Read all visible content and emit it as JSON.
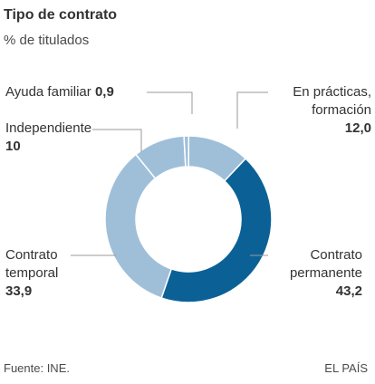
{
  "chart_data": {
    "type": "pie",
    "title": "Tipo de contrato",
    "subtitle": "% de titulados",
    "unit": "%",
    "donut": true,
    "slices": [
      {
        "name": "En prácticas, formación",
        "label_lines": [
          "En prácticas,",
          "formación"
        ],
        "value": 12.0,
        "value_text": "12,0",
        "color": "#9fbfd9"
      },
      {
        "name": "Contrato permanente",
        "label_lines": [
          "Contrato",
          "permanente"
        ],
        "value": 43.2,
        "value_text": "43,2",
        "color": "#0b6196"
      },
      {
        "name": "Contrato temporal",
        "label_lines": [
          "Contrato",
          "temporal"
        ],
        "value": 33.9,
        "value_text": "33,9",
        "color": "#9fbfd9"
      },
      {
        "name": "Independiente",
        "label_lines": [
          "Independiente"
        ],
        "value": 10,
        "value_text": "10",
        "color": "#9fbfd9"
      },
      {
        "name": "Ayuda familiar",
        "label_lines": [
          "Ayuda familiar"
        ],
        "value": 0.9,
        "value_text": "0,9",
        "color": "#9fbfd9"
      }
    ]
  },
  "footer": {
    "source": "Fuente: INE.",
    "brand": "EL PAÍS"
  },
  "colors": {
    "slice_border": "#ffffff",
    "leader_line": "#9a9a9a",
    "text": "#333333"
  }
}
